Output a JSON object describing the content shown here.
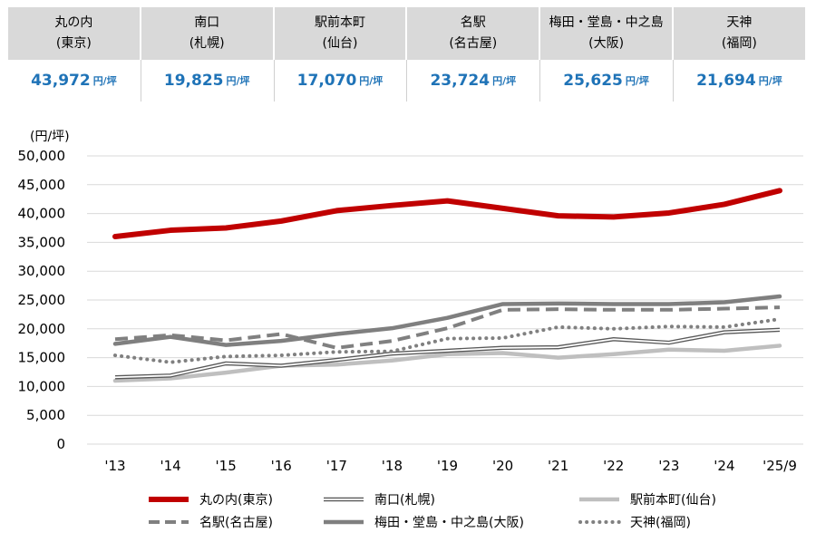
{
  "summary": [
    {
      "area": "丸の内",
      "city": "(東京)",
      "price": "43,972",
      "unit": "円/坪"
    },
    {
      "area": "南口",
      "city": "(札幌)",
      "price": "19,825",
      "unit": "円/坪"
    },
    {
      "area": "駅前本町",
      "city": "(仙台)",
      "price": "17,070",
      "unit": "円/坪"
    },
    {
      "area": "名駅",
      "city": "(名古屋)",
      "price": "23,724",
      "unit": "円/坪"
    },
    {
      "area": "梅田・堂島・中之島",
      "city": "(大阪)",
      "price": "25,625",
      "unit": "円/坪"
    },
    {
      "area": "天神",
      "city": "(福岡)",
      "price": "21,694",
      "unit": "円/坪"
    }
  ],
  "chart_data": {
    "type": "line",
    "ylabel": "(円/坪)",
    "ylim": [
      0,
      50000
    ],
    "yticks": [
      "0",
      "5,000",
      "10,000",
      "15,000",
      "20,000",
      "25,000",
      "30,000",
      "35,000",
      "40,000",
      "45,000",
      "50,000"
    ],
    "categories": [
      "'13",
      "'14",
      "'15",
      "'16",
      "'17",
      "'18",
      "'19",
      "'20",
      "'21",
      "'22",
      "'23",
      "'24",
      "'25/9"
    ],
    "grid": "horizontal",
    "legend_position": "bottom",
    "series": [
      {
        "name": "丸の内(東京)",
        "color": "#c00000",
        "style": "solid-thick",
        "values": [
          36000,
          37100,
          37500,
          38700,
          40500,
          41400,
          42200,
          40900,
          39600,
          39400,
          40100,
          41600,
          43972
        ]
      },
      {
        "name": "南口(札幌)",
        "color": "#595959",
        "style": "double",
        "values": [
          11600,
          11900,
          14000,
          13600,
          14600,
          15700,
          16200,
          16700,
          16800,
          18200,
          17600,
          19400,
          19825
        ]
      },
      {
        "name": "駅前本町(仙台)",
        "color": "#bfbfbf",
        "style": "solid-thick",
        "values": [
          11000,
          11400,
          12400,
          13600,
          13800,
          14500,
          15600,
          15800,
          15000,
          15600,
          16400,
          16200,
          17070
        ]
      },
      {
        "name": "名駅(名古屋)",
        "color": "#808080",
        "style": "dashed",
        "values": [
          18200,
          18900,
          18000,
          19100,
          16700,
          17900,
          20100,
          23300,
          23400,
          23300,
          23300,
          23500,
          23724
        ]
      },
      {
        "name": "梅田・堂島・中之島(大阪)",
        "color": "#7f7f7f",
        "style": "solid-thick",
        "values": [
          17400,
          18600,
          17200,
          17900,
          19100,
          20100,
          21900,
          24300,
          24400,
          24300,
          24300,
          24600,
          25625
        ]
      },
      {
        "name": "天神(福岡)",
        "color": "#808080",
        "style": "dotted",
        "values": [
          15400,
          14200,
          15200,
          15400,
          16000,
          16100,
          18300,
          18400,
          20300,
          20000,
          20400,
          20300,
          21694
        ]
      }
    ]
  }
}
